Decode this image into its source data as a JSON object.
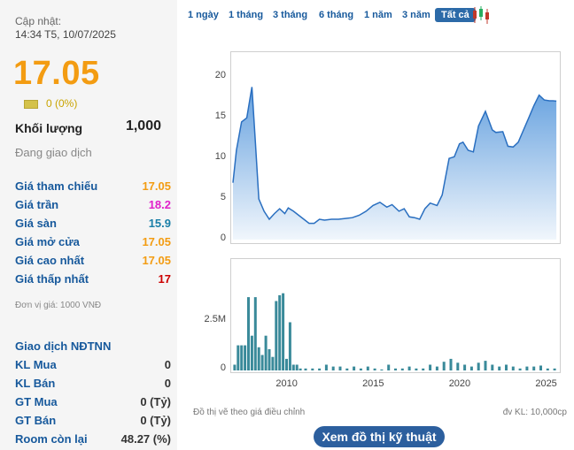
{
  "quote": {
    "updated_label": "Cập nhật:",
    "updated_time": "14:34 T5, 10/07/2025",
    "price": "17.05",
    "change": "0 (0%)",
    "volume_label": "Khối lượng",
    "volume_value": "1,000",
    "status": "Đang giao dịch"
  },
  "stats": [
    {
      "label": "Giá tham chiếu",
      "value": "17.05",
      "color": "#f39c12"
    },
    {
      "label": "Giá trần",
      "value": "18.2",
      "color": "#e020c9"
    },
    {
      "label": "Giá sàn",
      "value": "15.9",
      "color": "#1a7fa8"
    },
    {
      "label": "Giá mở cửa",
      "value": "17.05",
      "color": "#f39c12"
    },
    {
      "label": "Giá cao nhất",
      "value": "17.05",
      "color": "#f39c12"
    },
    {
      "label": "Giá thấp nhất",
      "value": "17",
      "color": "#cc0000"
    }
  ],
  "unit_note": "Đơn vị giá: 1000 VNĐ",
  "foreign": {
    "title": "Giao dịch NĐTNN",
    "rows": [
      {
        "label": "KL Mua",
        "value": "0"
      },
      {
        "label": "KL Bán",
        "value": "0"
      },
      {
        "label": "GT Mua",
        "value": "0 (Tỷ)"
      },
      {
        "label": "GT Bán",
        "value": "0 (Tỷ)"
      },
      {
        "label": "Room còn lại",
        "value": "48.27 (%)"
      }
    ]
  },
  "tabs": [
    {
      "label": "1 ngày",
      "active": false
    },
    {
      "label": "1 tháng",
      "active": false
    },
    {
      "label": "3 tháng",
      "active": false
    },
    {
      "label": "6 tháng",
      "active": false
    },
    {
      "label": "1 năm",
      "active": false
    },
    {
      "label": "3 năm",
      "active": false
    },
    {
      "label": "Tất cả",
      "active": true
    }
  ],
  "icons": {
    "candlestick": "candlestick-chart-icon"
  },
  "notes": {
    "left": "Đồ thị vẽ theo giá điều chỉnh",
    "right": "đv KL: 10,000cp"
  },
  "tech_button": "Xem đồ thị kỹ thuật",
  "colors": {
    "accent": "#2c5f9e",
    "area": "#4a90d9",
    "bar": "#3a8a9a"
  },
  "chart_data": [
    {
      "type": "area",
      "title": "",
      "xlabel": "",
      "ylabel": "",
      "ylim": [
        0,
        22
      ],
      "yticks": [
        0,
        5,
        10,
        15,
        20
      ],
      "x": [
        2006.8,
        2007.0,
        2007.3,
        2007.6,
        2007.9,
        2008.1,
        2008.3,
        2008.6,
        2008.9,
        2009.2,
        2009.5,
        2009.8,
        2010.0,
        2010.3,
        2010.6,
        2010.9,
        2011.2,
        2011.5,
        2011.8,
        2012.1,
        2012.5,
        2012.9,
        2013.3,
        2013.7,
        2014.1,
        2014.5,
        2014.9,
        2015.3,
        2015.7,
        2016.0,
        2016.4,
        2016.7,
        2017.0,
        2017.3,
        2017.6,
        2017.9,
        2018.2,
        2018.6,
        2018.9,
        2019.3,
        2019.6,
        2019.9,
        2020.1,
        2020.4,
        2020.7,
        2021.0,
        2021.4,
        2021.8,
        2022.0,
        2022.4,
        2022.7,
        2023.0,
        2023.3,
        2023.6,
        2023.9,
        2024.2,
        2024.5,
        2024.8,
        2025.1,
        2025.3,
        2025.5
      ],
      "values": [
        7,
        11,
        14.5,
        15,
        18.8,
        12,
        5,
        3.5,
        2.5,
        3.2,
        3.8,
        3.2,
        3.9,
        3.5,
        3.0,
        2.5,
        2.0,
        2.0,
        2.5,
        2.4,
        2.5,
        2.5,
        2.6,
        2.7,
        3.0,
        3.5,
        4.2,
        4.6,
        4.0,
        4.3,
        3.5,
        3.8,
        2.8,
        2.7,
        2.5,
        3.8,
        4.5,
        4.2,
        5.5,
        10,
        10.2,
        11.8,
        12,
        11,
        10.8,
        14,
        15.8,
        13.5,
        13.2,
        13.3,
        11.5,
        11.4,
        12,
        13.5,
        15,
        16.5,
        17.8,
        17.2,
        17.1,
        17.1,
        17.05
      ]
    },
    {
      "type": "bar",
      "title": "",
      "xlabel": "",
      "ylabel": "",
      "ylim": [
        0,
        5.5
      ],
      "yticks": [
        {
          "value": 0,
          "label": "0"
        },
        {
          "value": 2.5,
          "label": "2.5M"
        }
      ],
      "xticks": [
        2010,
        2015,
        2020,
        2025
      ],
      "x": [
        2006.9,
        2007.1,
        2007.3,
        2007.5,
        2007.7,
        2007.9,
        2008.1,
        2008.3,
        2008.5,
        2008.7,
        2008.9,
        2009.1,
        2009.3,
        2009.5,
        2009.7,
        2009.9,
        2010.1,
        2010.3,
        2010.5,
        2010.7,
        2011.0,
        2011.4,
        2011.8,
        2012.2,
        2012.6,
        2013.0,
        2013.4,
        2013.8,
        2014.2,
        2014.6,
        2015.0,
        2015.4,
        2015.8,
        2016.2,
        2016.6,
        2017.0,
        2017.4,
        2017.8,
        2018.2,
        2018.6,
        2019.0,
        2019.4,
        2019.8,
        2020.2,
        2020.6,
        2021.0,
        2021.4,
        2021.8,
        2022.2,
        2022.6,
        2023.0,
        2023.4,
        2023.8,
        2024.2,
        2024.6,
        2025.0,
        2025.4
      ],
      "values": [
        0.3,
        1.3,
        1.3,
        1.3,
        3.8,
        1.8,
        3.8,
        1.2,
        0.8,
        1.8,
        1.1,
        0.7,
        3.6,
        3.9,
        4.0,
        0.6,
        2.5,
        0.3,
        0.3,
        0.1,
        0.1,
        0.1,
        0.1,
        0.3,
        0.2,
        0.2,
        0.1,
        0.2,
        0.1,
        0.2,
        0.1,
        0.05,
        0.3,
        0.1,
        0.1,
        0.2,
        0.1,
        0.1,
        0.3,
        0.2,
        0.45,
        0.6,
        0.4,
        0.3,
        0.2,
        0.4,
        0.5,
        0.3,
        0.2,
        0.3,
        0.2,
        0.1,
        0.2,
        0.2,
        0.25,
        0.1,
        0.1
      ]
    }
  ]
}
